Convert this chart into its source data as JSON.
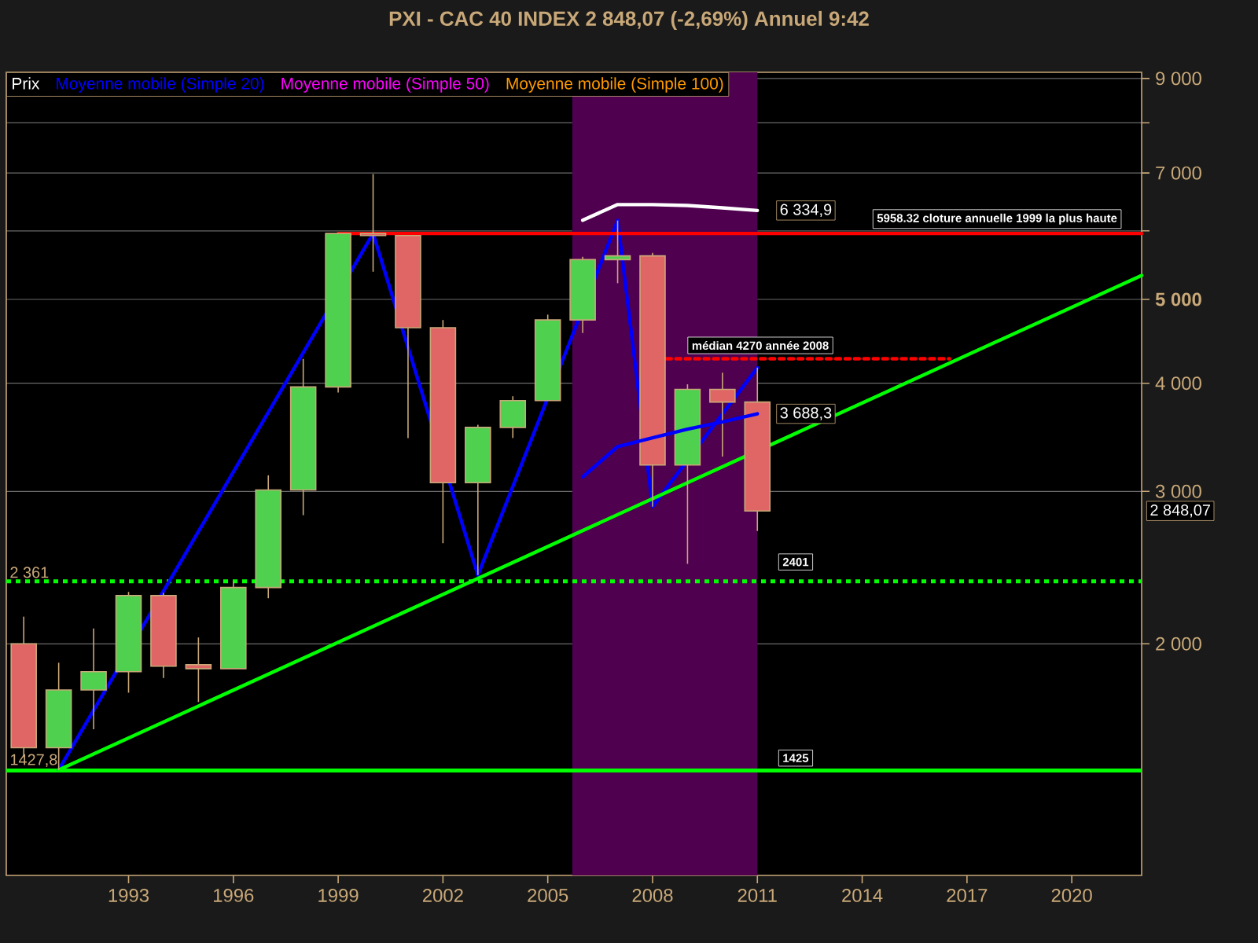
{
  "chart_data": {
    "type": "candlestick",
    "title": "PXI - CAC 40 INDEX    2 848,07 (-2,69%)    Annuel  9:42",
    "log": "y",
    "grid": "y",
    "legend": "top left",
    "xlim": [
      1989.5,
      2022
    ],
    "xticks": [
      1993,
      1996,
      1999,
      2002,
      2005,
      2008,
      2011,
      2014,
      2017,
      2020
    ],
    "ylim": [
      1080,
      9150
    ],
    "yticks": [
      {
        "value": 2000,
        "label": "2 000"
      },
      {
        "value": 3000,
        "label": "3 000"
      },
      {
        "value": 4000,
        "label": "4 000"
      },
      {
        "value": 5000,
        "label": "**5 000**"
      },
      {
        "value": 6000,
        "label": null
      },
      {
        "value": 7000,
        "label": "7 000"
      },
      {
        "value": 8000,
        "label": null
      },
      {
        "value": 9000,
        "label": "9 000"
      }
    ],
    "bands": [
      {
        "axis": "x",
        "from": 2005.7,
        "to": 2011,
        "color": "#4f004f"
      }
    ],
    "ref_lines": [
      {
        "axis": "y",
        "value": 2361,
        "label": "2 361",
        "color": "#00ff00",
        "line_style": "dotted"
      },
      {
        "axis": "y",
        "value": 1427.8,
        "label": "1427,8",
        "color": "#00ff00",
        "line_style": "solid"
      }
    ],
    "series": [
      {
        "name": "Prix",
        "x": [
          1990,
          1991,
          1992,
          1993,
          1994,
          1995,
          1996,
          1997,
          1998,
          1999,
          2000,
          2001,
          2002,
          2003,
          2004,
          2005,
          2006,
          2007,
          2008,
          2009,
          2010,
          2011
        ],
        "ohlc": [
          [
            2000,
            2150,
            1480,
            1517
          ],
          [
            1517,
            1902,
            1430,
            1769
          ],
          [
            1769,
            2083,
            1593,
            1857
          ],
          [
            1857,
            2296,
            1756,
            2274
          ],
          [
            2274,
            2290,
            1826,
            1884
          ],
          [
            1892,
            2034,
            1713,
            1872
          ],
          [
            1872,
            2361,
            1872,
            2323
          ],
          [
            2323,
            3131,
            2258,
            3012
          ],
          [
            3012,
            4268,
            2816,
            3962
          ],
          [
            3962,
            5970,
            3904,
            5958
          ],
          [
            5958,
            6980,
            5382,
            5926
          ],
          [
            5926,
            5926,
            3458,
            4637
          ],
          [
            4637,
            4734,
            2614,
            3070
          ],
          [
            3070,
            3582,
            2401,
            3557
          ],
          [
            3557,
            3865,
            3458,
            3821
          ],
          [
            3821,
            4801,
            3821,
            4734
          ],
          [
            4734,
            5600,
            4572,
            5558
          ],
          [
            5558,
            6168,
            5220,
            5614
          ],
          [
            5614,
            5660,
            2881,
            3218
          ],
          [
            3218,
            3990,
            2474,
            3936
          ],
          [
            3936,
            4114,
            3292,
            3805
          ],
          [
            3805,
            4170,
            2700,
            2848.07
          ]
        ],
        "colors": [
          "#e06666",
          "#4fd04f",
          "#4fd04f",
          "#4fd04f",
          "#e06666",
          "#e06666",
          "#4fd04f",
          "#4fd04f",
          "#4fd04f",
          "#4fd04f",
          "#e06666",
          "#e06666",
          "#e06666",
          "#4fd04f",
          "#4fd04f",
          "#4fd04f",
          "#4fd04f",
          "#4fd04f",
          "#e06666",
          "#4fd04f",
          "#e06666",
          "#e06666"
        ],
        "value_labels": [
          null,
          null,
          null,
          null,
          null,
          null,
          null,
          null,
          null,
          null,
          null,
          null,
          null,
          null,
          null,
          null,
          null,
          null,
          null,
          null,
          null,
          "2 848,07"
        ]
      },
      {
        "name": "Moyenne mobile (Simple 20)",
        "type": "line",
        "color": "#0000ff",
        "x": [
          2006,
          2007,
          2008,
          2009,
          2010,
          2011
        ],
        "values": [
          3118,
          3380,
          3460,
          3540,
          3610,
          3688.3
        ],
        "value_labels": [
          null,
          null,
          null,
          null,
          null,
          "3 688,3"
        ]
      },
      {
        "name": "Moyenne mobile (Simple 50)",
        "type": "line",
        "color": "#ff00ff"
      },
      {
        "name": "Moyenne mobile (Simple 100)",
        "type": "line",
        "color": "#ff9900"
      },
      {
        "type": "line",
        "color": "#ffffff",
        "x": [
          2006,
          2007,
          2008,
          2009,
          2010,
          2011
        ],
        "values": [
          6172,
          6435,
          6435,
          6420,
          6380,
          6334.9
        ],
        "value_labels": [
          null,
          null,
          null,
          null,
          null,
          "6 334,9"
        ]
      },
      {
        "type": "line",
        "color": "#0000ff",
        "x": [
          1991,
          2000,
          2003,
          2007,
          2008,
          2011
        ],
        "values": [
          1430,
          5958,
          2401,
          6168,
          2881,
          4170
        ]
      },
      {
        "type": "line",
        "color": "#00ff00",
        "x": [
          1991,
          2022
        ],
        "values": [
          1430,
          5330
        ]
      },
      {
        "type": "line",
        "color": "#ff0000",
        "x": [
          1999,
          2022
        ],
        "values": [
          5958.32,
          5958.32
        ]
      },
      {
        "type": "line",
        "color": "#ff0000",
        "line_style": "dashed",
        "x": [
          2008.4,
          2016.5
        ],
        "values": [
          4270,
          4270
        ]
      }
    ],
    "annotations": [
      {
        "text": "5958.32 cloture annuelle 1999  la plus haute",
        "x": 2014.3,
        "y": 5958.32
      },
      {
        "text": "médian 4270  année 2008",
        "x": 2009,
        "y": 4270
      },
      {
        "text": "2401",
        "x": 2011.6,
        "y": 2401
      },
      {
        "text": "1425",
        "x": 2011.6,
        "y": 1425
      }
    ]
  }
}
